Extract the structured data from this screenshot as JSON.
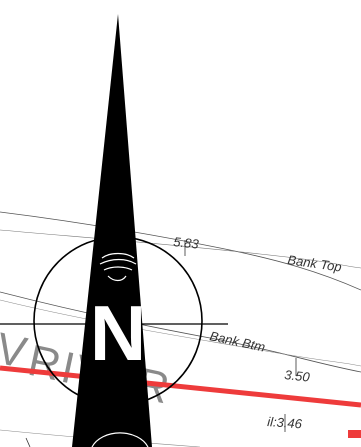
{
  "drawing": {
    "labels": {
      "bank_top": "Bank Top",
      "bank_btm": "Bank Btm",
      "level_1": "5.83",
      "level_2": "3.50",
      "invert_level": "il:3.46",
      "river_name": "RIVER",
      "river_prefix": "V",
      "north_letter": "N"
    },
    "colors": {
      "linework": "#000000",
      "contour": "#555555",
      "river_text": "#8a8a8a",
      "pipe": "#ee3b3b",
      "background": "#ffffff"
    },
    "icons": {
      "north_arrow": "north-arrow-icon",
      "swirl": "squiggle-icon"
    }
  }
}
